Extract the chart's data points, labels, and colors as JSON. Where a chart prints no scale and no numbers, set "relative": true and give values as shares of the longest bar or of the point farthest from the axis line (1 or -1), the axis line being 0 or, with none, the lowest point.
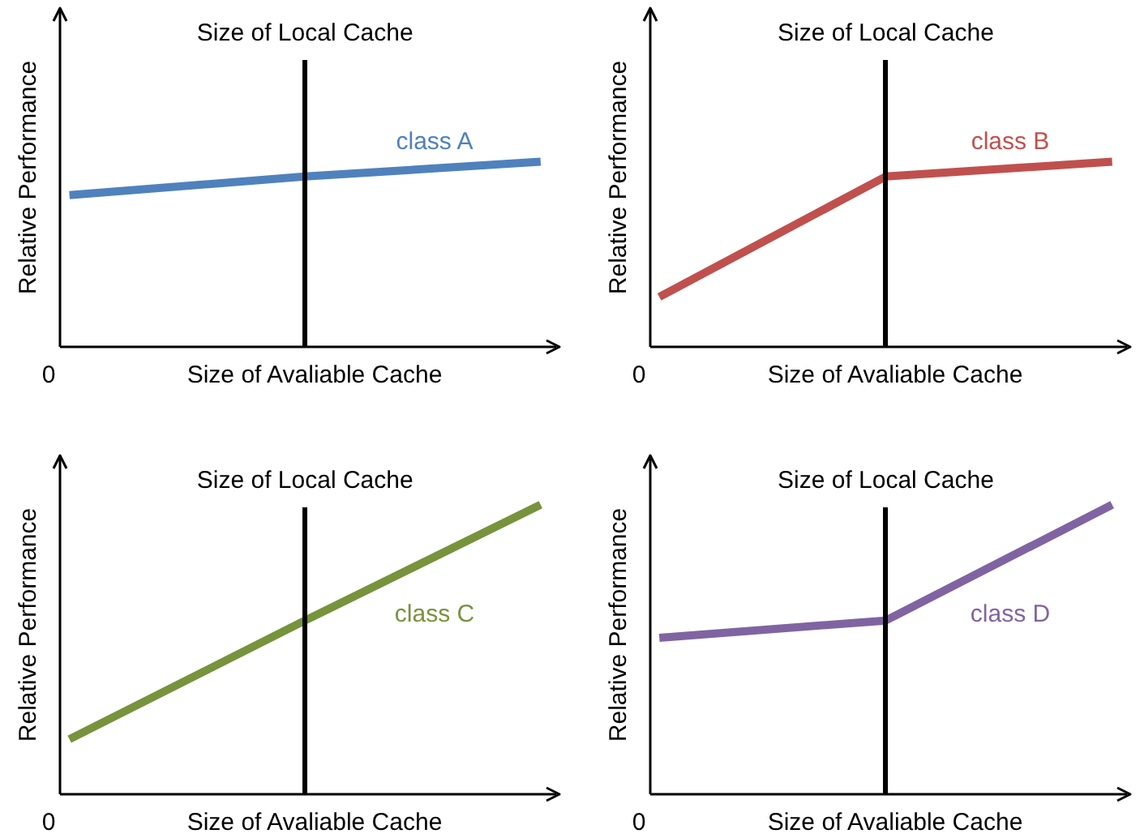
{
  "chart_data": [
    {
      "type": "line",
      "relative": true,
      "legend": false,
      "categories": [
        null,
        null,
        null
      ],
      "xlabel": "Size of Avaliable Cache",
      "ylabel": "Relative Performance",
      "annotations": [
        "Size of Local Cache",
        "0"
      ],
      "series": [
        {
          "name": "class A",
          "color": "#4f81bd",
          "values": [
            0.82,
            0.92,
            1
          ]
        }
      ]
    },
    {
      "type": "line",
      "relative": true,
      "legend": false,
      "categories": [
        null,
        null,
        null
      ],
      "xlabel": "Size of Avaliable Cache",
      "ylabel": "Relative Performance",
      "annotations": [
        "Size of Local Cache",
        "0"
      ],
      "series": [
        {
          "name": "class B",
          "color": "#c0504d",
          "values": [
            0.27,
            0.92,
            1
          ]
        }
      ]
    },
    {
      "type": "line",
      "relative": true,
      "legend": false,
      "categories": [
        null,
        null,
        null
      ],
      "xlabel": "Size of Avaliable Cache",
      "ylabel": "Relative Performance",
      "annotations": [
        "Size of Local Cache",
        "0"
      ],
      "series": [
        {
          "name": "class C",
          "color": "#77933c",
          "values": [
            0.19,
            0.6,
            1
          ]
        }
      ]
    },
    {
      "type": "line",
      "relative": true,
      "legend": false,
      "categories": [
        null,
        null,
        null
      ],
      "xlabel": "Size of Avaliable Cache",
      "ylabel": "Relative Performance",
      "annotations": [
        "Size of Local Cache",
        "0"
      ],
      "series": [
        {
          "name": "class D",
          "color": "#8064a2",
          "values": [
            0.54,
            0.6,
            1
          ]
        }
      ]
    }
  ]
}
